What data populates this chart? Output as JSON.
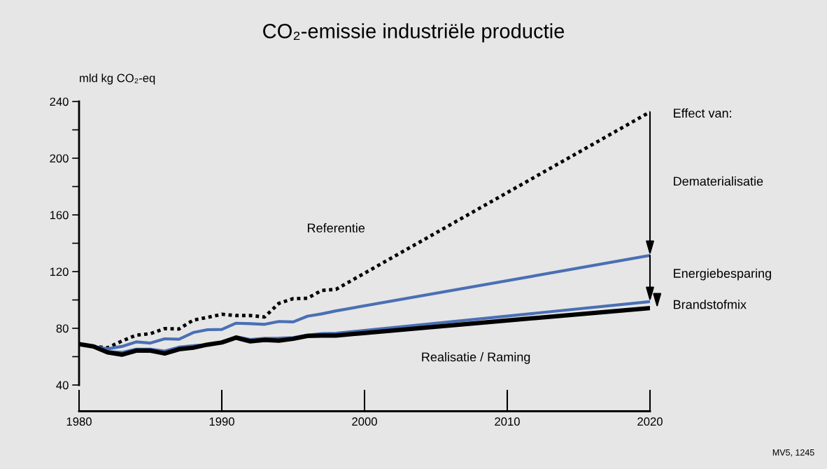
{
  "chart_data": {
    "type": "line",
    "title": "CO₂-emissie industriële productie",
    "ylabel": "mld kg CO₂-eq",
    "x": [
      1980,
      1981,
      1982,
      1983,
      1984,
      1985,
      1986,
      1987,
      1988,
      1989,
      1990,
      1991,
      1992,
      1993,
      1994,
      1995,
      1996,
      1997,
      1998,
      2020
    ],
    "series": [
      {
        "color": "#000000",
        "line_style": "dotted",
        "values": [
          68.8,
          67.2,
          66.3,
          71.0,
          75.2,
          76.2,
          79.8,
          79.5,
          85.8,
          87.7,
          89.9,
          89.0,
          89.0,
          88.0,
          97.6,
          100.9,
          101.2,
          106.7,
          107.5,
          232.6
        ]
      },
      {
        "color": "#4a6fb5",
        "line_style": "solid",
        "values": [
          68.8,
          67.2,
          65.5,
          67.2,
          70.4,
          69.6,
          72.6,
          72.3,
          77.0,
          79.0,
          79.2,
          83.6,
          83.3,
          82.8,
          84.8,
          84.5,
          88.5,
          90.2,
          92.3,
          131.4
        ]
      },
      {
        "color": "#4a6fb5",
        "line_style": "solid",
        "values": [
          68.8,
          67.2,
          63.5,
          63.0,
          65.3,
          65.3,
          63.9,
          66.7,
          67.7,
          68.5,
          70.0,
          74.1,
          72.1,
          72.9,
          73.0,
          73.4,
          75.2,
          76.2,
          76.5,
          98.8
        ]
      },
      {
        "color": "#000000",
        "line_style": "solid",
        "values": [
          68.8,
          67.2,
          63.0,
          61.4,
          64.2,
          64.2,
          62.2,
          65.2,
          66.3,
          68.5,
          70.0,
          73.4,
          70.8,
          71.8,
          71.3,
          72.6,
          74.6,
          74.9,
          74.9,
          94.3
        ]
      }
    ],
    "xlim": [
      1980,
      2020
    ],
    "xticks": [
      1980,
      1990,
      2000,
      2010,
      2020
    ],
    "ylim": [
      40,
      240
    ],
    "yticks": [
      40,
      {
        "value": 60,
        "label": null
      },
      80,
      {
        "value": 100,
        "label": null
      },
      120,
      {
        "value": 140,
        "label": null
      },
      160,
      {
        "value": 180,
        "label": null
      },
      200,
      {
        "value": 220,
        "label": null
      },
      240
    ],
    "grid": false,
    "legend": false,
    "marker": "none",
    "annotations": [
      "Referentie",
      "Realisatie / Raming",
      "Effect van:",
      "Dematerialisatie",
      "Energiebesparing",
      "Brandstofmix",
      "MV5, 1245"
    ]
  }
}
